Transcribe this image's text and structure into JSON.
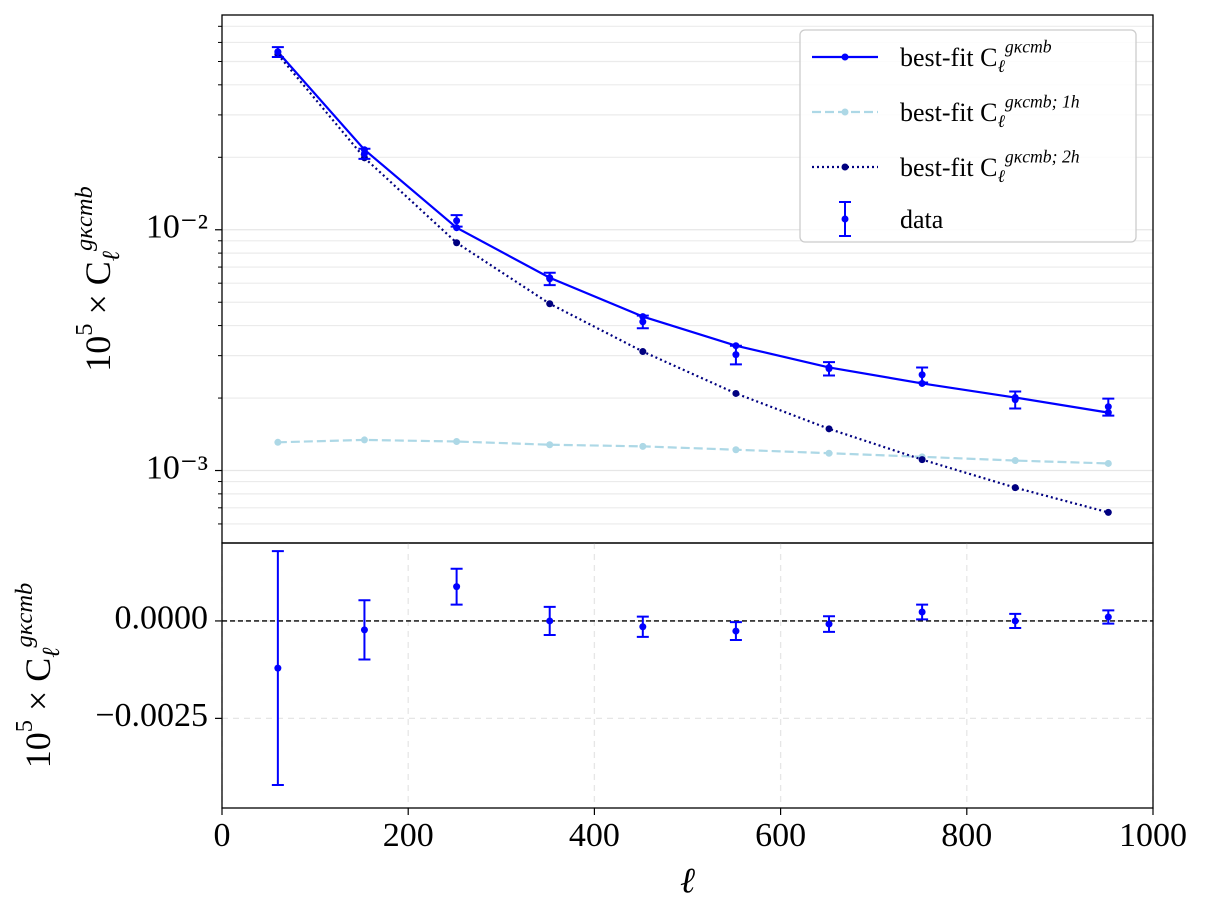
{
  "chart_data": [
    {
      "type": "line",
      "scale": "log",
      "grid": true,
      "legend": "upper right",
      "ylabel": [
        {
          "text": "10"
        },
        {
          "text": "5",
          "pos": "sup"
        },
        {
          "text": " × C"
        },
        {
          "text": "ℓ",
          "pos": "sub"
        },
        {
          "text": "gκcmb",
          "pos": "sup"
        }
      ],
      "xlim": [
        0,
        1000
      ],
      "ylim": [
        0.0005,
        0.078
      ],
      "yticks": [
        {
          "value": 0.001,
          "label": "10⁻³"
        },
        {
          "value": 0.01,
          "label": "10⁻²"
        }
      ],
      "minor_yticks": [
        0.0006,
        0.0007,
        0.0008,
        0.0009,
        0.002,
        0.003,
        0.004,
        0.005,
        0.006,
        0.007,
        0.008,
        0.009,
        0.02,
        0.03,
        0.04,
        0.05,
        0.06,
        0.07
      ],
      "x": [
        60,
        153,
        252,
        352,
        452,
        552,
        652,
        752,
        852,
        952
      ],
      "series": [
        {
          "name": [
            {
              "text": "best-fit C"
            },
            {
              "text": "ℓ",
              "pos": "sub"
            },
            {
              "text": "gκcmb",
              "pos": "sup"
            }
          ],
          "color": "#0000ff",
          "style": "solid",
          "values": [
            0.0548,
            0.0215,
            0.0102,
            0.00632,
            0.00436,
            0.0033,
            0.00268,
            0.0023,
            0.00201,
            0.00174
          ]
        },
        {
          "name": [
            {
              "text": "best-fit C"
            },
            {
              "text": "ℓ",
              "pos": "sub"
            },
            {
              "text": "gκcmb; 1h",
              "pos": "sup"
            }
          ],
          "color": "#add8e6",
          "style": "dashed",
          "values": [
            0.00131,
            0.00134,
            0.00132,
            0.00128,
            0.00126,
            0.00122,
            0.00118,
            0.00114,
            0.0011,
            0.00107
          ]
        },
        {
          "name": [
            {
              "text": "best-fit C"
            },
            {
              "text": "ℓ",
              "pos": "sub"
            },
            {
              "text": "gκcmb; 2h",
              "pos": "sup"
            }
          ],
          "color": "#000080",
          "style": "dotted",
          "values": [
            0.0535,
            0.0199,
            0.00883,
            0.00493,
            0.00312,
            0.00209,
            0.00149,
            0.00111,
            0.000849,
            0.00067
          ]
        },
        {
          "name": [
            {
              "text": "data"
            }
          ],
          "color": "#0000ff",
          "style": "errorbar",
          "values": [
            0.0548,
            0.0207,
            0.0109,
            0.00626,
            0.00415,
            0.00303,
            0.00265,
            0.0025,
            0.00197,
            0.00184
          ],
          "errors": [
            0.0026,
            0.001,
            0.0006,
            0.00037,
            0.00025,
            0.00027,
            0.00017,
            0.00018,
            0.00016,
            0.00015
          ]
        }
      ]
    },
    {
      "type": "errorbar",
      "grid": true,
      "grid_style": "dashed",
      "hline": 0,
      "ylabel": [
        {
          "text": "10"
        },
        {
          "text": "5",
          "pos": "sup"
        },
        {
          "text": " × C"
        },
        {
          "text": "ℓ",
          "pos": "sub"
        },
        {
          "text": "gκcmb",
          "pos": "sup"
        }
      ],
      "xlabel": "ℓ",
      "xlim": [
        0,
        1000
      ],
      "xticks": [
        0,
        200,
        400,
        600,
        800,
        1000
      ],
      "ylim": [
        -0.0048,
        0.002
      ],
      "yticks": [
        {
          "value": -0.0025,
          "label": "−0.0025"
        },
        {
          "value": 0,
          "label": "0.0000"
        }
      ],
      "x": [
        60,
        153,
        252,
        352,
        452,
        552,
        652,
        752,
        852,
        952
      ],
      "series": [
        {
          "color": "#0000ff",
          "values": [
            -0.00121,
            -0.00023,
            0.00088,
            0.0,
            -0.00015,
            -0.00026,
            -8e-05,
            0.00023,
            0.0,
            0.0001
          ],
          "errors": [
            0.003,
            0.00076,
            0.00046,
            0.00036,
            0.00026,
            0.00023,
            0.0002,
            0.00019,
            0.00018,
            0.00017
          ]
        }
      ]
    }
  ]
}
